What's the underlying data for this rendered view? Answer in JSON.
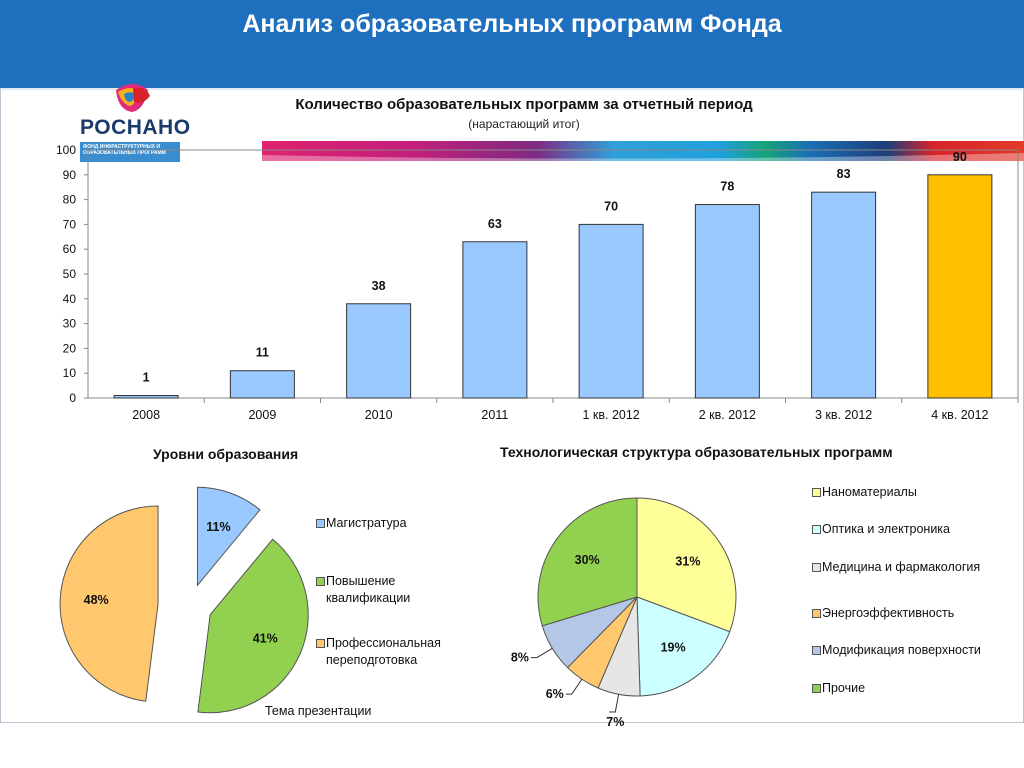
{
  "header": {
    "title": "Анализ образовательных программ Фонда"
  },
  "logo": {
    "name": "РОСНАНО",
    "tagline": "ФОНД ИНФРАСТРУКТУРНЫХ И ОБРАЗОВАТЕЛЬНЫХ ПРОГРАММ"
  },
  "footer": {
    "text": "Тема презентации"
  },
  "pie1_title": "Уровни образования",
  "pie2_title": "Технологическая структура образовательных программ",
  "chart_data": [
    {
      "type": "bar",
      "title": "Количество образовательных программ за отчетный период",
      "subtitle": "(нарастающий итог)",
      "categories": [
        "2008",
        "2009",
        "2010",
        "2011",
        "1 кв. 2012",
        "2 кв. 2012",
        "3 кв. 2012",
        "4 кв. 2012"
      ],
      "values": [
        1,
        11,
        38,
        63,
        70,
        78,
        83,
        90
      ],
      "ylim": [
        0,
        100
      ],
      "yticks": [
        0,
        10,
        20,
        30,
        40,
        50,
        60,
        70,
        80,
        90,
        100
      ],
      "colors": [
        "#99c9ff",
        "#99c9ff",
        "#99c9ff",
        "#99c9ff",
        "#99c9ff",
        "#99c9ff",
        "#99c9ff",
        "#ffc000"
      ]
    },
    {
      "type": "pie",
      "title": "Уровни образования",
      "labels": [
        "Магистратура",
        "Повышение квалификации",
        "Профессиональная переподготовка"
      ],
      "values": [
        11,
        41,
        48
      ],
      "value_labels": [
        "11%",
        "41%",
        "48%"
      ],
      "colors": [
        "#99c9ff",
        "#92d050",
        "#ffc86e"
      ],
      "exploded": true
    },
    {
      "type": "pie",
      "title": "Технологическая структура образовательных программ",
      "labels": [
        "Наноматериалы",
        "Оптика и электроника",
        "Медицина и фармакология",
        "Энергоэффективность",
        "Модификация поверхности",
        "Прочие"
      ],
      "values": [
        31,
        19,
        7,
        6,
        8,
        30
      ],
      "value_labels": [
        "31%",
        "19%",
        "7%",
        "6%",
        "8%",
        "30%"
      ],
      "colors": [
        "#ffff99",
        "#ccffff",
        "#e6e6e6",
        "#ffc86e",
        "#b4c7e7",
        "#92d050"
      ]
    }
  ]
}
